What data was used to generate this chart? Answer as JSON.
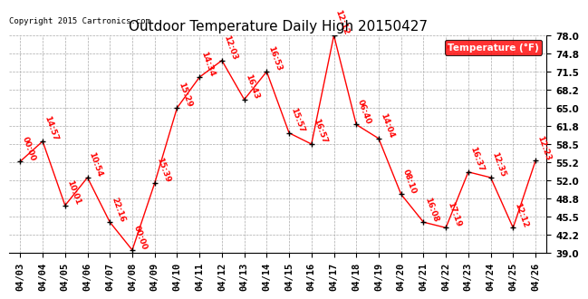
{
  "title": "Outdoor Temperature Daily High 20150427",
  "copyright": "Copyright 2015 Cartronics.com",
  "legend_label": "Temperature (°F)",
  "dates": [
    "04/03",
    "04/04",
    "04/05",
    "04/06",
    "04/07",
    "04/08",
    "04/09",
    "04/10",
    "04/11",
    "04/12",
    "04/13",
    "04/14",
    "04/15",
    "04/16",
    "04/17",
    "04/18",
    "04/19",
    "04/20",
    "04/21",
    "04/22",
    "04/23",
    "04/24",
    "04/25",
    "04/26"
  ],
  "temps": [
    55.4,
    59.0,
    47.5,
    52.5,
    44.5,
    39.5,
    51.5,
    65.0,
    70.5,
    73.5,
    66.5,
    71.5,
    60.5,
    58.5,
    78.0,
    62.0,
    59.5,
    49.5,
    44.5,
    43.5,
    53.5,
    52.5,
    43.5,
    55.5
  ],
  "labels": [
    "00:00",
    "14:57",
    "10:01",
    "10:54",
    "22:16",
    "00:00",
    "15:39",
    "15:29",
    "14:34",
    "12:03",
    "16:43",
    "16:53",
    "15:57",
    "16:57",
    "12:12",
    "06:40",
    "14:04",
    "08:10",
    "16:08",
    "17:19",
    "16:37",
    "12:35",
    "12:12",
    "12:23"
  ],
  "ylim": [
    39.0,
    78.0
  ],
  "yticks": [
    39.0,
    42.2,
    45.5,
    48.8,
    52.0,
    55.2,
    58.5,
    61.8,
    65.0,
    68.2,
    71.5,
    74.8,
    78.0
  ],
  "line_color": "red",
  "marker_color": "black",
  "label_color": "red",
  "bg_color": "#ffffff",
  "grid_color": "#aaaaaa",
  "title_fontsize": 11,
  "label_fontsize": 6.5,
  "tick_fontsize": 7.5,
  "legend_bg": "red",
  "legend_fg": "white"
}
